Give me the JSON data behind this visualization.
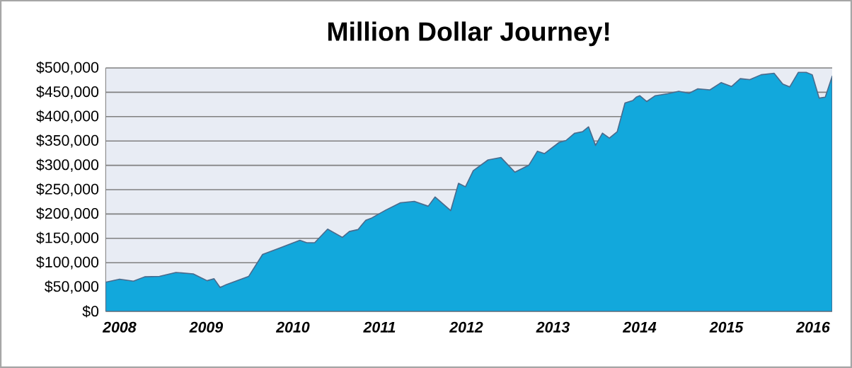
{
  "chart_data": {
    "type": "area",
    "title": "Million Dollar Journey!",
    "x": [
      2007.84,
      2008.0,
      2008.16,
      2008.29,
      2008.46,
      2008.65,
      2008.85,
      2009.01,
      2009.09,
      2009.16,
      2009.23,
      2009.49,
      2009.65,
      2009.83,
      2010.08,
      2010.16,
      2010.25,
      2010.4,
      2010.57,
      2010.65,
      2010.75,
      2010.84,
      2010.91,
      2011.07,
      2011.24,
      2011.4,
      2011.56,
      2011.64,
      2011.82,
      2011.91,
      2011.99,
      2012.08,
      2012.25,
      2012.4,
      2012.56,
      2012.72,
      2012.82,
      2012.9,
      2013.07,
      2013.15,
      2013.25,
      2013.34,
      2013.41,
      2013.49,
      2013.57,
      2013.65,
      2013.74,
      2013.83,
      2013.92,
      2013.96,
      2014.0,
      2014.08,
      2014.18,
      2014.32,
      2014.45,
      2014.57,
      2014.67,
      2014.81,
      2014.94,
      2015.06,
      2015.16,
      2015.27,
      2015.4,
      2015.55,
      2015.65,
      2015.73,
      2015.83,
      2015.92,
      2015.99,
      2016.07,
      2016.14,
      2016.22
    ],
    "values": [
      60000,
      66000,
      62000,
      71000,
      72000,
      80000,
      77000,
      63000,
      67000,
      49000,
      55000,
      72000,
      117000,
      129000,
      146000,
      141000,
      141000,
      169000,
      152000,
      164000,
      168000,
      187000,
      192000,
      208000,
      223000,
      226000,
      216000,
      235000,
      207000,
      263000,
      256000,
      289000,
      311000,
      316000,
      286000,
      300000,
      329000,
      324000,
      347000,
      351000,
      366000,
      369000,
      379000,
      341000,
      366000,
      356000,
      369000,
      428000,
      433000,
      440000,
      443000,
      431000,
      443000,
      447000,
      452000,
      448000,
      457000,
      455000,
      470000,
      462000,
      478000,
      476000,
      486000,
      489000,
      467000,
      461000,
      491000,
      491000,
      486000,
      438000,
      440000,
      483000
    ],
    "color": "#12a8dc",
    "xlim": [
      2007.84,
      2016.22
    ],
    "xticks": [
      {
        "value": 2008,
        "label": "2008"
      },
      {
        "value": 2009,
        "label": "2009"
      },
      {
        "value": 2010,
        "label": "2010"
      },
      {
        "value": 2011,
        "label": "2011"
      },
      {
        "value": 2012,
        "label": "2012"
      },
      {
        "value": 2013,
        "label": "2013"
      },
      {
        "value": 2014,
        "label": "2014"
      },
      {
        "value": 2015,
        "label": "2015"
      },
      {
        "value": 2016,
        "label": "2016"
      }
    ],
    "ylim": [
      0,
      500000
    ],
    "yticks": [
      {
        "value": 0,
        "label": "$0"
      },
      {
        "value": 50000,
        "label": "$50,000"
      },
      {
        "value": 100000,
        "label": "$100,000"
      },
      {
        "value": 150000,
        "label": "$150,000"
      },
      {
        "value": 200000,
        "label": "$200,000"
      },
      {
        "value": 250000,
        "label": "$250,000"
      },
      {
        "value": 300000,
        "label": "$300,000"
      },
      {
        "value": 350000,
        "label": "$350,000"
      },
      {
        "value": 400000,
        "label": "$400,000"
      },
      {
        "value": 450000,
        "label": "$450,000"
      },
      {
        "value": 500000,
        "label": "$500,000"
      }
    ],
    "grid": "y"
  }
}
